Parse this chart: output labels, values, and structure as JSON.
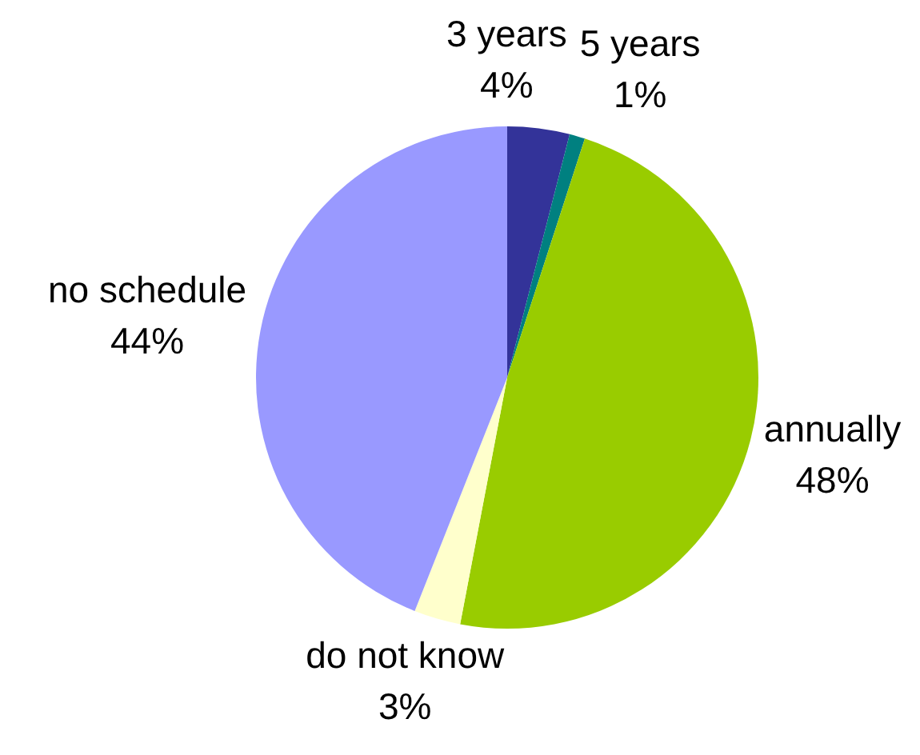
{
  "chart_data": {
    "type": "pie",
    "categories": [
      "3 years",
      "5 years",
      "annually",
      "do not know",
      "no schedule"
    ],
    "values": [
      4,
      1,
      48,
      3,
      44
    ],
    "colors": [
      "#333399",
      "#008080",
      "#99cc00",
      "#ffffcc",
      "#9999ff"
    ],
    "value_labels": [
      "4%",
      "1%",
      "48%",
      "3%",
      "44%"
    ]
  }
}
